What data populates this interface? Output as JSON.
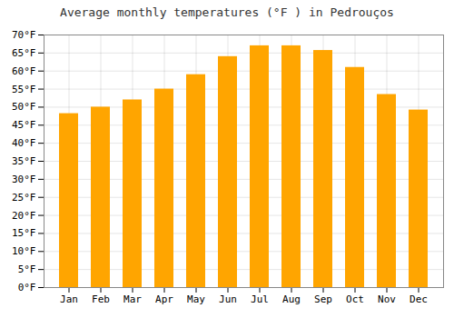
{
  "chart_data": {
    "type": "bar",
    "title": "Average monthly temperatures (°F ) in Pedrouços",
    "categories": [
      "Jan",
      "Feb",
      "Mar",
      "Apr",
      "May",
      "Jun",
      "Jul",
      "Aug",
      "Sep",
      "Oct",
      "Nov",
      "Dec"
    ],
    "values": [
      48.2,
      50.0,
      52.0,
      55.0,
      59.0,
      64.0,
      67.0,
      67.0,
      65.7,
      61.0,
      53.5,
      49.2
    ],
    "color": "#FFA500",
    "ylim": [
      0,
      70
    ],
    "yticks": [
      {
        "value": 0,
        "label": "0°F"
      },
      {
        "value": 5,
        "label": "5°F"
      },
      {
        "value": 10,
        "label": "10°F"
      },
      {
        "value": 15,
        "label": "15°F"
      },
      {
        "value": 20,
        "label": "20°F"
      },
      {
        "value": 25,
        "label": "25°F"
      },
      {
        "value": 30,
        "label": "30°F"
      },
      {
        "value": 35,
        "label": "35°F"
      },
      {
        "value": 40,
        "label": "40°F"
      },
      {
        "value": 45,
        "label": "45°F"
      },
      {
        "value": 50,
        "label": "50°F"
      },
      {
        "value": 55,
        "label": "55°F"
      },
      {
        "value": 60,
        "label": "60°F"
      },
      {
        "value": 65,
        "label": "65°F"
      },
      {
        "value": 70,
        "label": "70°F"
      }
    ],
    "grid": true
  }
}
